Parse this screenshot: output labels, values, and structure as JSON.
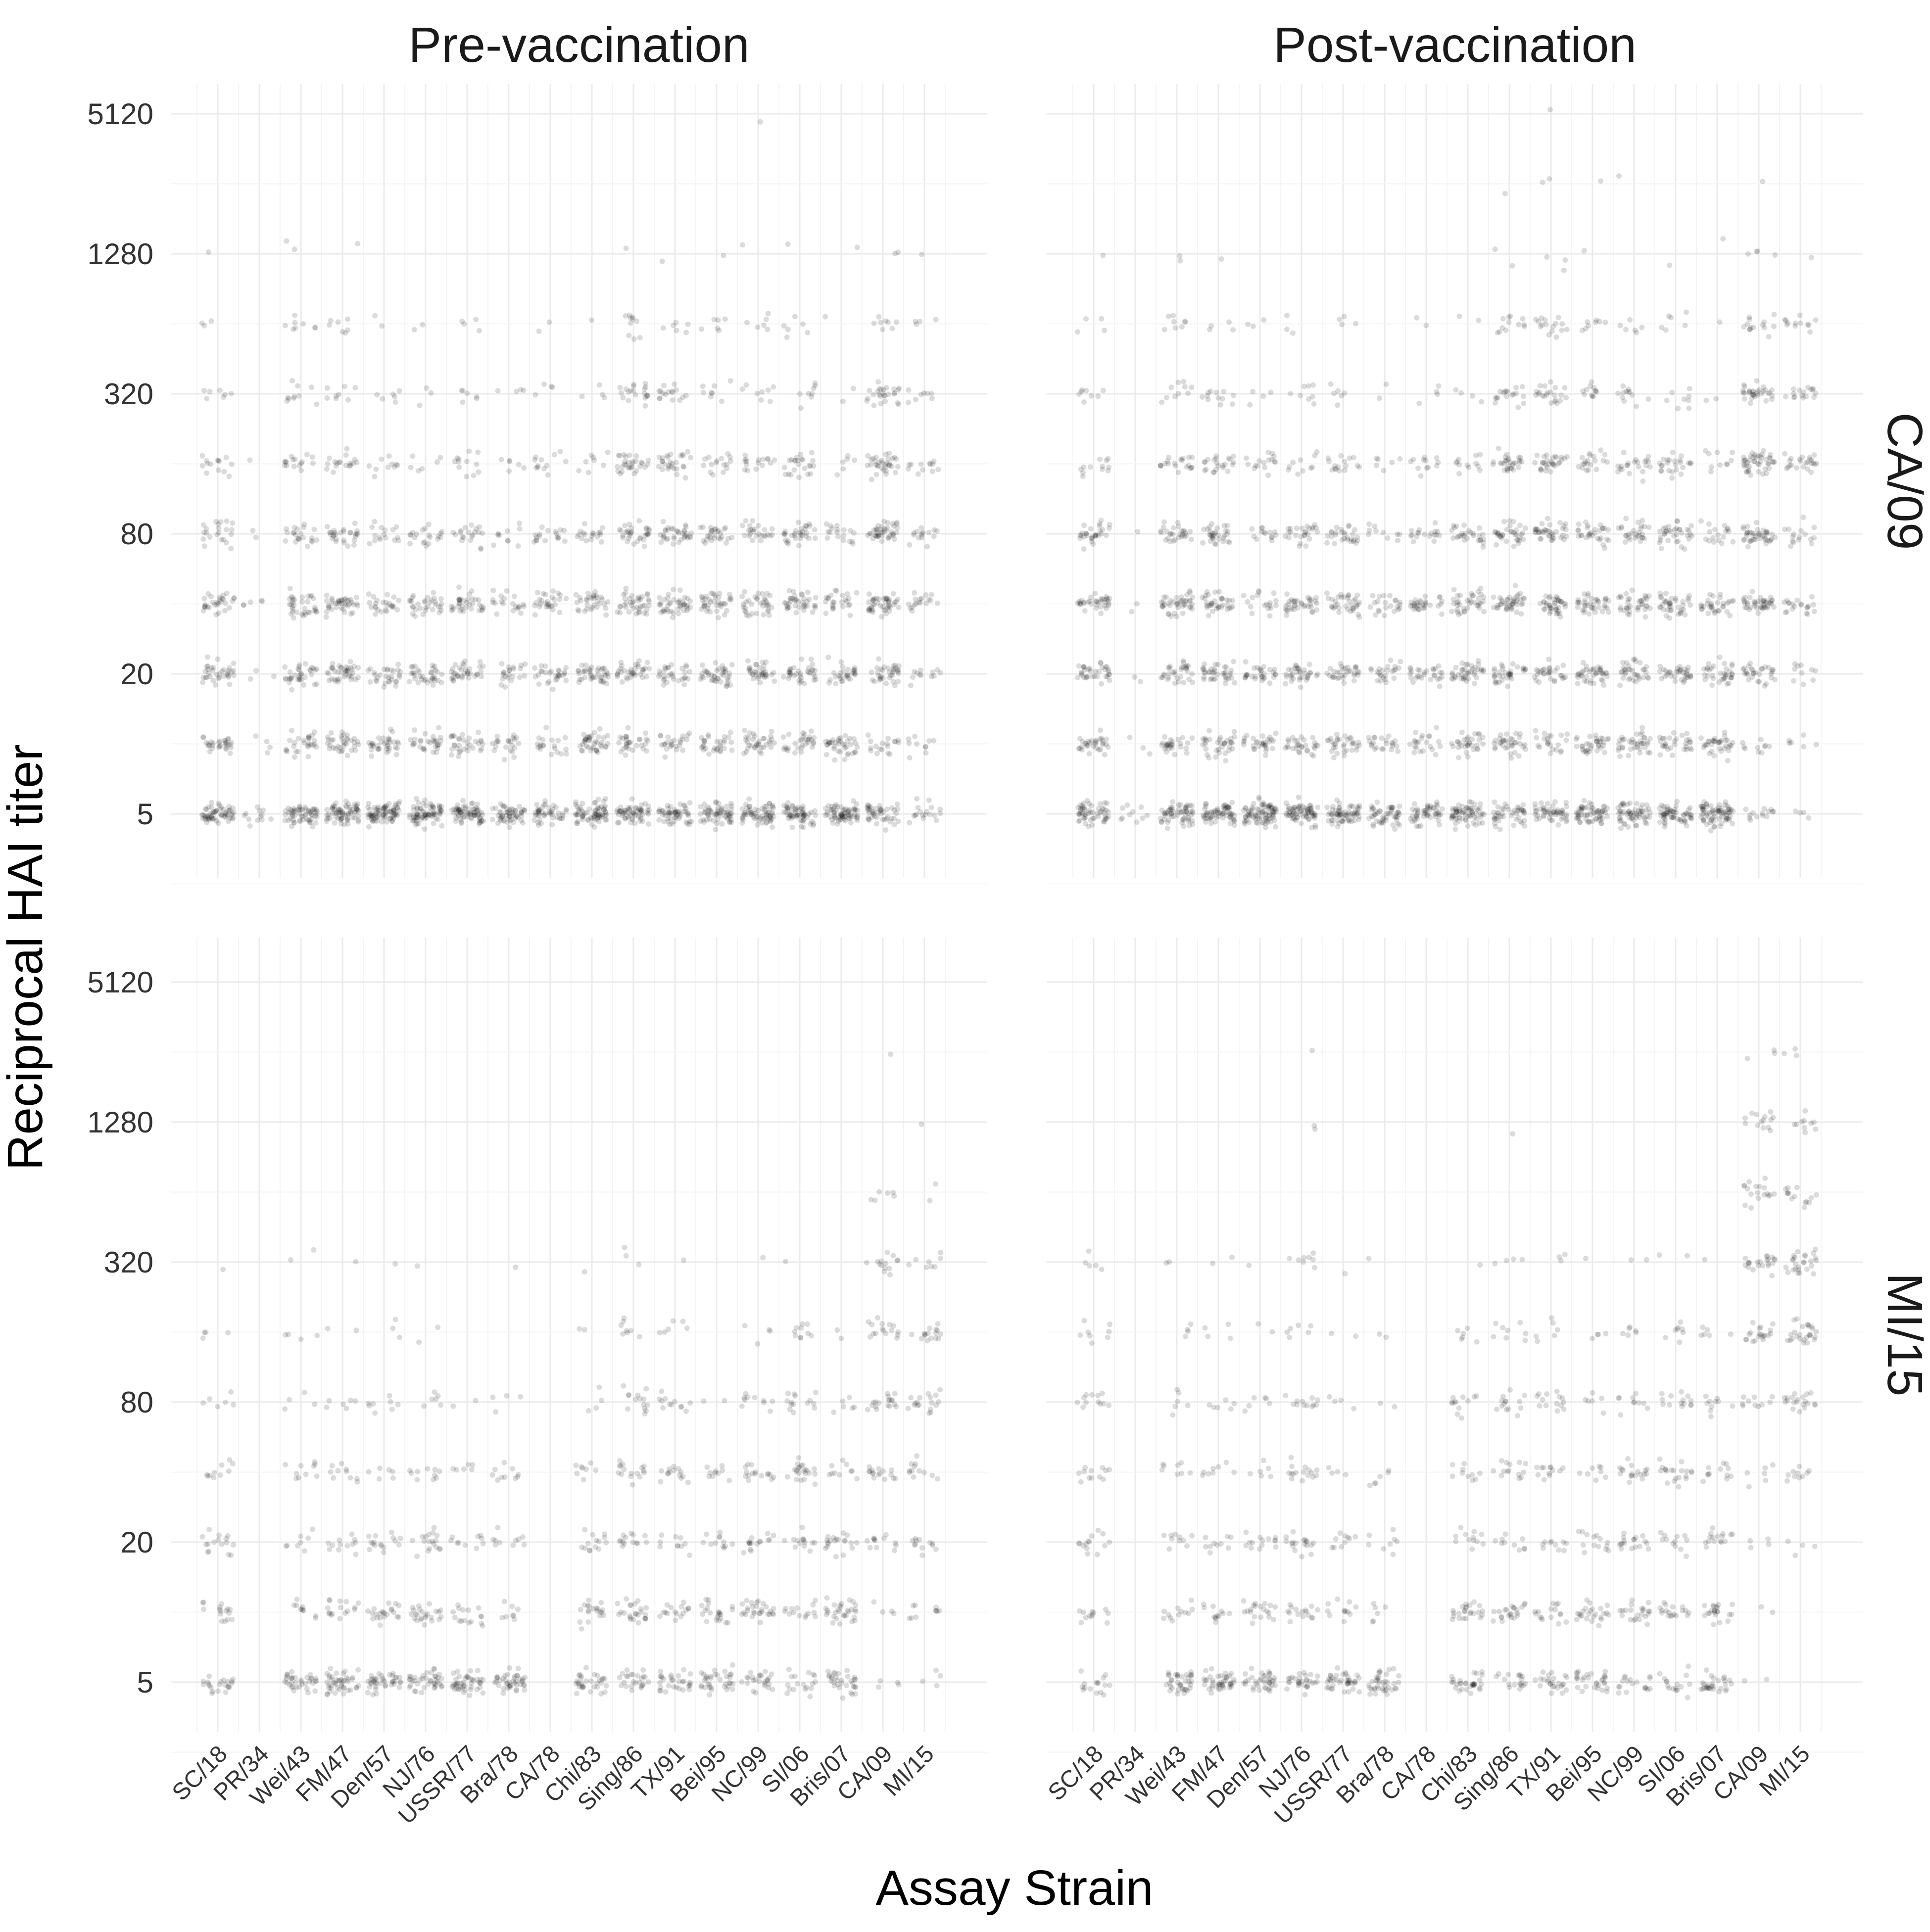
{
  "chart_data": {
    "type": "scatter",
    "style": "faceted jittered strip plot, semi-transparent black points",
    "xlabel": "Assay Strain",
    "ylabel": "Reciprocal HAI titer",
    "y_scale": "log2",
    "y_ticks": [
      5,
      20,
      80,
      320,
      1280,
      5120
    ],
    "y_levels": [
      5,
      10,
      20,
      40,
      80,
      160,
      320,
      640,
      1280,
      2560,
      5120
    ],
    "grid": true,
    "legend": "none",
    "point_color": "#000000",
    "strains": [
      "SC/18",
      "PR/34",
      "Wei/43",
      "FM/47",
      "Den/57",
      "NJ/76",
      "USSR/77",
      "Bra/78",
      "CA/78",
      "Chi/83",
      "Sing/86",
      "TX/91",
      "Bei/95",
      "NC/99",
      "SI/06",
      "Bris/07",
      "CA/09",
      "MI/15"
    ],
    "col_facets": [
      "Pre-vaccination",
      "Post-vaccination"
    ],
    "row_facets": [
      "CA/09",
      "MI/15"
    ],
    "panels": [
      {
        "col": "Pre-vaccination",
        "row": "CA/09",
        "counts": [
          [
            60,
            12,
            60,
            70,
            80,
            75,
            70,
            55,
            45,
            70,
            60,
            55,
            60,
            65,
            60,
            70,
            45,
            18
          ],
          [
            30,
            4,
            28,
            35,
            35,
            30,
            32,
            22,
            20,
            40,
            30,
            25,
            30,
            35,
            30,
            38,
            18,
            10
          ],
          [
            35,
            3,
            35,
            40,
            30,
            35,
            35,
            22,
            28,
            40,
            35,
            30,
            40,
            35,
            35,
            30,
            35,
            12
          ],
          [
            30,
            5,
            35,
            40,
            25,
            32,
            35,
            20,
            28,
            32,
            40,
            42,
            38,
            35,
            38,
            25,
            45,
            18
          ],
          [
            22,
            2,
            22,
            28,
            16,
            20,
            20,
            10,
            18,
            18,
            32,
            35,
            28,
            25,
            32,
            18,
            42,
            15
          ],
          [
            14,
            1,
            16,
            18,
            10,
            6,
            12,
            6,
            12,
            8,
            30,
            28,
            16,
            16,
            24,
            6,
            34,
            12
          ],
          [
            7,
            0,
            10,
            8,
            6,
            3,
            6,
            4,
            4,
            4,
            20,
            16,
            8,
            8,
            8,
            2,
            26,
            8
          ],
          [
            3,
            0,
            8,
            7,
            2,
            2,
            4,
            0,
            2,
            1,
            10,
            6,
            6,
            6,
            6,
            1,
            8,
            4
          ],
          [
            1,
            0,
            2,
            1,
            0,
            0,
            0,
            0,
            0,
            0,
            1,
            1,
            1,
            1,
            1,
            1,
            2,
            1
          ],
          [
            0,
            0,
            0,
            0,
            0,
            0,
            0,
            0,
            0,
            0,
            0,
            0,
            0,
            0,
            0,
            0,
            0,
            0
          ],
          [
            0,
            0,
            0,
            0,
            0,
            0,
            0,
            0,
            0,
            0,
            0,
            0,
            0,
            1,
            0,
            0,
            0,
            0
          ]
        ]
      },
      {
        "col": "Post-vaccination",
        "row": "CA/09",
        "counts": [
          [
            55,
            10,
            60,
            65,
            85,
            70,
            65,
            50,
            50,
            65,
            45,
            50,
            60,
            60,
            60,
            75,
            14,
            4
          ],
          [
            32,
            3,
            28,
            35,
            30,
            30,
            32,
            22,
            22,
            32,
            35,
            22,
            35,
            38,
            30,
            35,
            10,
            6
          ],
          [
            35,
            2,
            32,
            38,
            30,
            34,
            32,
            24,
            28,
            40,
            35,
            30,
            40,
            35,
            35,
            35,
            30,
            10
          ],
          [
            35,
            2,
            42,
            35,
            18,
            36,
            35,
            22,
            30,
            38,
            42,
            40,
            38,
            36,
            38,
            32,
            42,
            20
          ],
          [
            30,
            1,
            28,
            32,
            14,
            26,
            28,
            10,
            18,
            28,
            35,
            38,
            30,
            28,
            35,
            18,
            42,
            16
          ],
          [
            12,
            0,
            20,
            22,
            16,
            10,
            16,
            6,
            12,
            12,
            30,
            30,
            20,
            22,
            24,
            10,
            44,
            24
          ],
          [
            8,
            0,
            10,
            12,
            4,
            8,
            6,
            2,
            4,
            4,
            18,
            22,
            12,
            12,
            8,
            2,
            32,
            16
          ],
          [
            4,
            0,
            8,
            4,
            3,
            3,
            4,
            0,
            2,
            2,
            12,
            16,
            8,
            6,
            6,
            1,
            14,
            12
          ],
          [
            1,
            0,
            2,
            1,
            0,
            0,
            0,
            0,
            0,
            0,
            2,
            3,
            1,
            0,
            1,
            1,
            4,
            1
          ],
          [
            0,
            0,
            0,
            0,
            0,
            0,
            0,
            0,
            0,
            0,
            1,
            2,
            1,
            1,
            0,
            0,
            1,
            0
          ],
          [
            0,
            0,
            0,
            0,
            0,
            0,
            0,
            0,
            0,
            0,
            0,
            1,
            0,
            0,
            0,
            0,
            0,
            0
          ]
        ]
      },
      {
        "col": "Pre-vaccination",
        "row": "MI/15",
        "counts": [
          [
            22,
            0,
            35,
            45,
            40,
            40,
            45,
            42,
            0,
            32,
            25,
            30,
            35,
            25,
            18,
            32,
            4,
            4
          ],
          [
            16,
            0,
            10,
            16,
            22,
            24,
            16,
            8,
            0,
            20,
            24,
            16,
            22,
            28,
            14,
            30,
            4,
            10
          ],
          [
            16,
            0,
            8,
            12,
            16,
            18,
            10,
            10,
            0,
            14,
            14,
            10,
            12,
            16,
            14,
            20,
            12,
            12
          ],
          [
            10,
            0,
            10,
            10,
            6,
            10,
            6,
            10,
            0,
            8,
            16,
            14,
            10,
            16,
            22,
            10,
            16,
            12
          ],
          [
            6,
            0,
            4,
            6,
            8,
            6,
            2,
            4,
            0,
            4,
            14,
            12,
            2,
            10,
            14,
            6,
            18,
            18
          ],
          [
            4,
            0,
            4,
            2,
            3,
            2,
            0,
            0,
            0,
            2,
            8,
            6,
            0,
            4,
            10,
            2,
            16,
            16
          ],
          [
            1,
            0,
            2,
            1,
            1,
            1,
            0,
            1,
            0,
            1,
            3,
            1,
            0,
            1,
            1,
            0,
            14,
            8
          ],
          [
            0,
            0,
            0,
            0,
            0,
            0,
            0,
            0,
            0,
            0,
            0,
            0,
            0,
            0,
            0,
            0,
            6,
            2
          ],
          [
            0,
            0,
            0,
            0,
            0,
            0,
            0,
            0,
            0,
            0,
            0,
            0,
            0,
            0,
            0,
            0,
            0,
            1
          ],
          [
            0,
            0,
            0,
            0,
            0,
            0,
            0,
            0,
            0,
            0,
            0,
            0,
            0,
            0,
            0,
            0,
            1,
            0
          ],
          [
            0,
            0,
            0,
            0,
            0,
            0,
            0,
            0,
            0,
            0,
            0,
            0,
            0,
            0,
            0,
            0,
            0,
            0
          ]
        ]
      },
      {
        "col": "Post-vaccination",
        "row": "MI/15",
        "counts": [
          [
            16,
            0,
            38,
            42,
            38,
            30,
            40,
            38,
            0,
            32,
            18,
            25,
            30,
            18,
            16,
            30,
            2,
            0
          ],
          [
            12,
            0,
            12,
            12,
            20,
            16,
            12,
            6,
            0,
            24,
            22,
            16,
            24,
            22,
            18,
            22,
            2,
            0
          ],
          [
            14,
            0,
            10,
            10,
            14,
            18,
            10,
            8,
            0,
            12,
            10,
            10,
            14,
            18,
            12,
            16,
            4,
            4
          ],
          [
            12,
            0,
            8,
            8,
            6,
            16,
            4,
            6,
            0,
            10,
            14,
            12,
            8,
            18,
            20,
            12,
            6,
            10
          ],
          [
            12,
            0,
            6,
            6,
            6,
            12,
            4,
            2,
            0,
            12,
            14,
            14,
            6,
            10,
            14,
            10,
            10,
            20
          ],
          [
            8,
            0,
            4,
            4,
            2,
            6,
            2,
            2,
            0,
            6,
            8,
            6,
            4,
            6,
            8,
            6,
            20,
            26
          ],
          [
            5,
            0,
            2,
            2,
            1,
            8,
            1,
            1,
            0,
            1,
            4,
            3,
            1,
            2,
            2,
            1,
            22,
            26
          ],
          [
            0,
            0,
            0,
            0,
            0,
            0,
            0,
            0,
            0,
            0,
            0,
            0,
            0,
            0,
            0,
            0,
            18,
            14
          ],
          [
            0,
            0,
            0,
            0,
            0,
            2,
            0,
            0,
            0,
            0,
            1,
            0,
            0,
            0,
            0,
            0,
            14,
            10
          ],
          [
            0,
            0,
            0,
            0,
            0,
            1,
            0,
            0,
            0,
            0,
            0,
            0,
            0,
            0,
            0,
            0,
            3,
            3
          ],
          [
            0,
            0,
            0,
            0,
            0,
            0,
            0,
            0,
            0,
            0,
            0,
            0,
            0,
            0,
            0,
            0,
            0,
            0
          ]
        ]
      }
    ]
  }
}
